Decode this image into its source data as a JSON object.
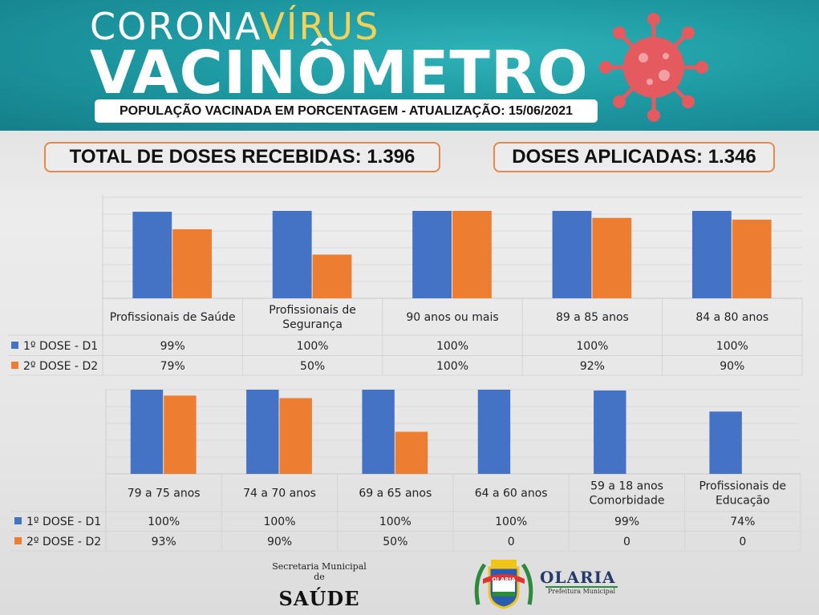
{
  "banner": {
    "title_line1_a": "CORONA",
    "title_line1_b": "VÍRUS",
    "title_line2": "VACINÔMETRO",
    "subtitle": "POPULAÇÃO VACINADA EM PORCENTAGEM - ATUALIZAÇÃO: 15/06/2021"
  },
  "stats": {
    "received": "TOTAL DE DOSES RECEBIDAS: 1.396",
    "applied": "DOSES APLICADAS: 1.346"
  },
  "colors": {
    "d1": "#4472c4",
    "d2": "#ed7d31",
    "banner": "#1e9aa3",
    "accent": "#f4d25a",
    "border": "#e8884a"
  },
  "chart_data": [
    {
      "type": "bar",
      "categories": [
        [
          "Profissionais de Saúde"
        ],
        [
          "Profissionais de",
          "Segurança"
        ],
        [
          "90 anos ou mais"
        ],
        [
          "89 a 85 anos"
        ],
        [
          "84 a 80 anos"
        ]
      ],
      "series": [
        {
          "name": "1º DOSE - D1",
          "values": [
            99,
            100,
            100,
            100,
            100
          ],
          "labels": [
            "99%",
            "100%",
            "100%",
            "100%",
            "100%"
          ]
        },
        {
          "name": "2º DOSE - D2",
          "values": [
            79,
            50,
            100,
            92,
            90
          ],
          "labels": [
            "79%",
            "50%",
            "100%",
            "92%",
            "90%"
          ]
        }
      ],
      "ylim": [
        0,
        100
      ]
    },
    {
      "type": "bar",
      "categories": [
        [
          "79 a 75 anos"
        ],
        [
          "74 a 70 anos"
        ],
        [
          "69 a 65 anos"
        ],
        [
          "64 a 60 anos"
        ],
        [
          "59 a 18 anos",
          "Comorbidade"
        ],
        [
          "Profissionais de",
          "Educação"
        ]
      ],
      "series": [
        {
          "name": "1º DOSE - D1",
          "values": [
            100,
            100,
            100,
            100,
            99,
            74
          ],
          "labels": [
            "100%",
            "100%",
            "100%",
            "100%",
            "99%",
            "74%"
          ]
        },
        {
          "name": "2º DOSE - D2",
          "values": [
            93,
            90,
            50,
            0,
            0,
            0
          ],
          "labels": [
            "93%",
            "90%",
            "50%",
            "0",
            "0",
            "0"
          ]
        }
      ],
      "ylim": [
        0,
        100
      ]
    }
  ],
  "footer": {
    "secretaria": "Secretaria Municipal de",
    "saude": "SAÚDE",
    "city": "OLARIA",
    "city_sub": "Prefeitura Municipal",
    "crest_label": "OLARIA"
  }
}
